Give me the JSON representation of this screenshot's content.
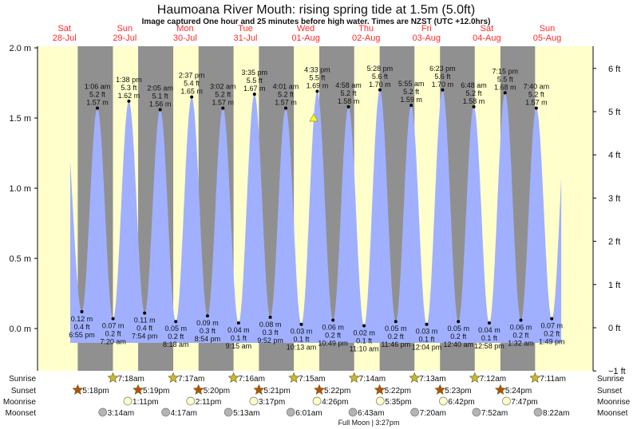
{
  "header": {
    "title": "Haumoana River Mouth: rising  spring tide at 1.5m (5.0ft)",
    "subtitle": "Image captured One hour and 25 minutes before high water. Times are NZST (UTC +12.0hrs)"
  },
  "chart_data": {
    "type": "area",
    "title": "Haumoana River Mouth: rising  spring tide at 1.5m (5.0ft)",
    "ylabel_left": "m",
    "ylabel_right": "ft",
    "ylim_m": [
      -0.3,
      2.0
    ],
    "yticks_left": [
      "2.0 m",
      "1.5 m",
      "1.0 m",
      "0.5 m",
      "0.0 m"
    ],
    "yticks_left_values": [
      2.0,
      1.5,
      1.0,
      0.5,
      0.0
    ],
    "yticks_right": [
      "6 ft",
      "5 ft",
      "4 ft",
      "3 ft",
      "2 ft",
      "1 ft",
      "0 ft",
      "−1 ft"
    ],
    "yticks_right_values": [
      6,
      5,
      4,
      3,
      2,
      1,
      0,
      -1
    ],
    "days": [
      {
        "dow": "Sat",
        "date": "28-Jul"
      },
      {
        "dow": "Sun",
        "date": "29-Jul"
      },
      {
        "dow": "Mon",
        "date": "30-Jul"
      },
      {
        "dow": "Tue",
        "date": "31-Jul"
      },
      {
        "dow": "Wed",
        "date": "01-Aug"
      },
      {
        "dow": "Thu",
        "date": "02-Aug"
      },
      {
        "dow": "Fri",
        "date": "03-Aug"
      },
      {
        "dow": "Sat",
        "date": "04-Aug"
      },
      {
        "dow": "Sun",
        "date": "05-Aug"
      }
    ],
    "extremes": [
      {
        "day": "28-Jul",
        "time": "6:55 pm",
        "m": 0.12,
        "ft": "0.4 ft",
        "type": "low"
      },
      {
        "day": "29-Jul",
        "time": "1:06 am",
        "m": 1.57,
        "ft": "5.2 ft",
        "type": "high"
      },
      {
        "day": "29-Jul",
        "time": "7:20 am",
        "m": 0.07,
        "ft": "0.2 ft",
        "type": "low"
      },
      {
        "day": "29-Jul",
        "time": "1:38 pm",
        "m": 1.62,
        "ft": "5.3 ft",
        "type": "high"
      },
      {
        "day": "29-Jul",
        "time": "7:54 pm",
        "m": 0.11,
        "ft": "0.4 ft",
        "type": "low"
      },
      {
        "day": "30-Jul",
        "time": "2:05 am",
        "m": 1.56,
        "ft": "5.1 ft",
        "type": "high"
      },
      {
        "day": "30-Jul",
        "time": "8:18 am",
        "m": 0.05,
        "ft": "0.2 ft",
        "type": "low"
      },
      {
        "day": "30-Jul",
        "time": "2:37 pm",
        "m": 1.65,
        "ft": "5.4 ft",
        "type": "high"
      },
      {
        "day": "30-Jul",
        "time": "8:54 pm",
        "m": 0.09,
        "ft": "0.3 ft",
        "type": "low"
      },
      {
        "day": "31-Jul",
        "time": "3:02 am",
        "m": 1.57,
        "ft": "5.2 ft",
        "type": "high"
      },
      {
        "day": "31-Jul",
        "time": "9:15 am",
        "m": 0.04,
        "ft": "0.1 ft",
        "type": "low"
      },
      {
        "day": "31-Jul",
        "time": "3:35 pm",
        "m": 1.67,
        "ft": "5.5 ft",
        "type": "high"
      },
      {
        "day": "31-Jul",
        "time": "9:52 pm",
        "m": 0.08,
        "ft": "0.3 ft",
        "type": "low"
      },
      {
        "day": "01-Aug",
        "time": "4:01 am",
        "m": 1.57,
        "ft": "5.2 ft",
        "type": "high"
      },
      {
        "day": "01-Aug",
        "time": "10:13 am",
        "m": 0.03,
        "ft": "0.1 ft",
        "type": "low"
      },
      {
        "day": "01-Aug",
        "time": "4:33 pm",
        "m": 1.69,
        "ft": "5.5 ft",
        "type": "high"
      },
      {
        "day": "01-Aug",
        "time": "10:49 pm",
        "m": 0.06,
        "ft": "0.2 ft",
        "type": "low"
      },
      {
        "day": "02-Aug",
        "time": "4:58 am",
        "m": 1.58,
        "ft": "5.2 ft",
        "type": "high"
      },
      {
        "day": "02-Aug",
        "time": "11:10 am",
        "m": 0.02,
        "ft": "0.1 ft",
        "type": "low"
      },
      {
        "day": "02-Aug",
        "time": "5:28 pm",
        "m": 1.7,
        "ft": "5.6 ft",
        "type": "high"
      },
      {
        "day": "02-Aug",
        "time": "11:46 pm",
        "m": 0.05,
        "ft": "0.2 ft",
        "type": "low"
      },
      {
        "day": "03-Aug",
        "time": "5:55 am",
        "m": 1.59,
        "ft": "5.2 ft",
        "type": "high"
      },
      {
        "day": "03-Aug",
        "time": "12:04 pm",
        "m": 0.03,
        "ft": "0.1 ft",
        "type": "low"
      },
      {
        "day": "03-Aug",
        "time": "6:23 pm",
        "m": 1.7,
        "ft": "5.6 ft",
        "type": "high"
      },
      {
        "day": "04-Aug",
        "time": "12:40 am",
        "m": 0.05,
        "ft": "0.2 ft",
        "type": "low"
      },
      {
        "day": "04-Aug",
        "time": "6:48 am",
        "m": 1.58,
        "ft": "5.2 ft",
        "type": "high"
      },
      {
        "day": "04-Aug",
        "time": "12:58 pm",
        "m": 0.04,
        "ft": "0.1 ft",
        "type": "low"
      },
      {
        "day": "04-Aug",
        "time": "7:15 pm",
        "m": 1.68,
        "ft": "5.5 ft",
        "type": "high"
      },
      {
        "day": "05-Aug",
        "time": "1:32 am",
        "m": 0.06,
        "ft": "0.2 ft",
        "type": "low"
      },
      {
        "day": "05-Aug",
        "time": "7:40 am",
        "m": 1.57,
        "ft": "5.2 ft",
        "type": "high"
      },
      {
        "day": "05-Aug",
        "time": "1:49 pm",
        "m": 0.07,
        "ft": "0.2 ft",
        "type": "low"
      }
    ],
    "current": {
      "day": "01-Aug",
      "time": "3:08 pm",
      "m": 1.5
    }
  },
  "rows": {
    "labels": {
      "sunrise": "Sunrise",
      "sunset": "Sunset",
      "moonrise": "Moonrise",
      "moonset": "Moonset"
    },
    "sunrise": [
      {
        "day": "29-Jul",
        "time": "7:18am"
      },
      {
        "day": "30-Jul",
        "time": "7:17am"
      },
      {
        "day": "31-Jul",
        "time": "7:16am"
      },
      {
        "day": "01-Aug",
        "time": "7:15am"
      },
      {
        "day": "02-Aug",
        "time": "7:14am"
      },
      {
        "day": "03-Aug",
        "time": "7:13am"
      },
      {
        "day": "04-Aug",
        "time": "7:12am"
      },
      {
        "day": "05-Aug",
        "time": "7:11am"
      }
    ],
    "sunset": [
      {
        "day": "28-Jul",
        "time": "5:18pm"
      },
      {
        "day": "29-Jul",
        "time": "5:19pm"
      },
      {
        "day": "30-Jul",
        "time": "5:20pm"
      },
      {
        "day": "31-Jul",
        "time": "5:21pm"
      },
      {
        "day": "01-Aug",
        "time": "5:22pm"
      },
      {
        "day": "02-Aug",
        "time": "5:22pm"
      },
      {
        "day": "03-Aug",
        "time": "5:23pm"
      },
      {
        "day": "04-Aug",
        "time": "5:24pm"
      }
    ],
    "moonrise": [
      {
        "day": "29-Jul",
        "time": "1:11pm"
      },
      {
        "day": "30-Jul",
        "time": "2:11pm"
      },
      {
        "day": "31-Jul",
        "time": "3:17pm"
      },
      {
        "day": "01-Aug",
        "time": "4:26pm"
      },
      {
        "day": "02-Aug",
        "time": "5:35pm"
      },
      {
        "day": "03-Aug",
        "time": "6:42pm"
      },
      {
        "day": "04-Aug",
        "time": "7:47pm"
      }
    ],
    "moonset": [
      {
        "day": "29-Jul",
        "time": "3:14am"
      },
      {
        "day": "30-Jul",
        "time": "4:17am"
      },
      {
        "day": "31-Jul",
        "time": "5:13am"
      },
      {
        "day": "01-Aug",
        "time": "6:01am"
      },
      {
        "day": "02-Aug",
        "time": "6:43am"
      },
      {
        "day": "03-Aug",
        "time": "7:20am"
      },
      {
        "day": "04-Aug",
        "time": "7:52am"
      },
      {
        "day": "05-Aug",
        "time": "8:22am"
      }
    ],
    "full_moon": {
      "label": "Full Moon | 3:27pm"
    }
  },
  "colors": {
    "day": "#ffffcc",
    "night": "#909090",
    "water": "#a0b0ff",
    "day_label": "#ff2a2a",
    "sunrise": "#c8b832",
    "sunset": "#b4520a",
    "moonrise": "#ffffc8",
    "moonset": "#b4b4b4",
    "current": "#ffff33"
  }
}
